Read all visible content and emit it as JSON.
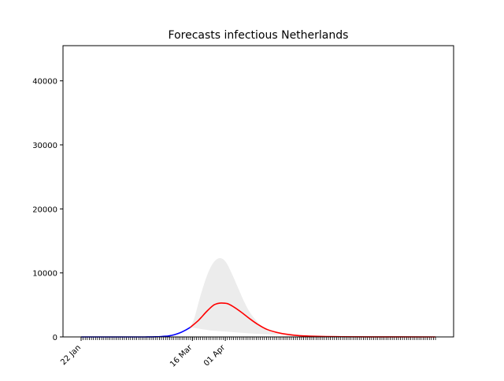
{
  "chart_data": {
    "type": "line",
    "title": "Forecasts infectious Netherlands",
    "xlabel": "",
    "ylabel": "",
    "x_axis": {
      "kind": "date",
      "start": "2020-01-22",
      "end": "2020-07-12",
      "tick_labels": [
        {
          "date": "2020-01-22",
          "label": "22 Jan"
        },
        {
          "date": "2020-03-16",
          "label": "16 Mar"
        },
        {
          "date": "2020-04-01",
          "label": "01 Apr"
        }
      ]
    },
    "ylim": [
      0,
      45500
    ],
    "y_ticks": [
      0,
      10000,
      20000,
      30000,
      40000
    ],
    "grid": false,
    "series": [
      {
        "role": "observed",
        "color": "#0000ff",
        "points": [
          [
            "2020-01-22",
            0
          ],
          [
            "2020-02-07",
            0
          ],
          [
            "2020-02-22",
            5
          ],
          [
            "2020-02-27",
            20
          ],
          [
            "2020-03-01",
            60
          ],
          [
            "2020-03-04",
            140
          ],
          [
            "2020-03-06",
            250
          ],
          [
            "2020-03-08",
            420
          ],
          [
            "2020-03-10",
            640
          ],
          [
            "2020-03-12",
            950
          ],
          [
            "2020-03-14",
            1300
          ],
          [
            "2020-03-15",
            1500
          ]
        ]
      },
      {
        "role": "forecast",
        "color": "#ff0000",
        "points": [
          [
            "2020-03-15",
            1500
          ],
          [
            "2020-03-19",
            2600
          ],
          [
            "2020-03-23",
            4000
          ],
          [
            "2020-03-26",
            4900
          ],
          [
            "2020-03-28",
            5200
          ],
          [
            "2020-03-30",
            5300
          ],
          [
            "2020-04-02",
            5200
          ],
          [
            "2020-04-05",
            4700
          ],
          [
            "2020-04-09",
            3800
          ],
          [
            "2020-04-13",
            2800
          ],
          [
            "2020-04-17",
            1900
          ],
          [
            "2020-04-21",
            1200
          ],
          [
            "2020-04-26",
            700
          ],
          [
            "2020-05-01",
            400
          ],
          [
            "2020-05-07",
            200
          ],
          [
            "2020-05-14",
            100
          ],
          [
            "2020-05-25",
            40
          ],
          [
            "2020-06-10",
            10
          ],
          [
            "2020-07-12",
            0
          ]
        ]
      }
    ],
    "uncertainty_band": {
      "color": "#ececec",
      "upper": [
        [
          "2020-03-15",
          1500
        ],
        [
          "2020-03-17",
          3000
        ],
        [
          "2020-03-20",
          6500
        ],
        [
          "2020-03-23",
          9500
        ],
        [
          "2020-03-26",
          11500
        ],
        [
          "2020-03-29",
          12300
        ],
        [
          "2020-04-01",
          11800
        ],
        [
          "2020-04-04",
          10000
        ],
        [
          "2020-04-07",
          7800
        ],
        [
          "2020-04-10",
          5600
        ],
        [
          "2020-04-13",
          3800
        ],
        [
          "2020-04-17",
          2200
        ],
        [
          "2020-04-21",
          1200
        ],
        [
          "2020-04-26",
          500
        ],
        [
          "2020-05-02",
          150
        ],
        [
          "2020-05-10",
          40
        ],
        [
          "2020-05-20",
          0
        ]
      ],
      "lower": [
        [
          "2020-03-15",
          1500
        ],
        [
          "2020-03-25",
          1000
        ],
        [
          "2020-04-15",
          500
        ],
        [
          "2020-05-20",
          0
        ]
      ]
    }
  }
}
